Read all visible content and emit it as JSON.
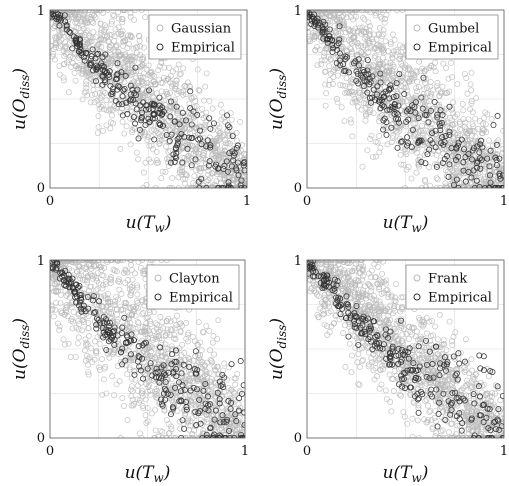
{
  "chart_data": [
    {
      "type": "scatter",
      "legend_position": "top-right",
      "grid": true,
      "xlim": [
        0,
        1
      ],
      "ylim": [
        0,
        1
      ],
      "xticks": [
        "0",
        "1"
      ],
      "yticks": [
        "0",
        "1"
      ],
      "xlabel": {
        "base": "u(T",
        "sub": "w",
        "close": ")"
      },
      "ylabel": {
        "base": "u(O",
        "sub": "diss",
        "close": ")"
      },
      "series": [
        {
          "name": "Gaussian",
          "color": "#b8b8b8",
          "style": "cloud",
          "n": 1400,
          "spread": 0.18
        },
        {
          "name": "Empirical",
          "color": "#333333",
          "style": "empirical",
          "n": 260,
          "x": [
            0.02,
            0.05,
            0.1,
            0.15,
            0.2,
            0.3,
            0.4,
            0.5,
            0.6,
            0.7,
            0.8,
            0.9,
            0.98
          ],
          "y": [
            0.97,
            0.93,
            0.87,
            0.8,
            0.73,
            0.6,
            0.5,
            0.42,
            0.34,
            0.27,
            0.2,
            0.13,
            0.05
          ]
        }
      ]
    },
    {
      "type": "scatter",
      "legend_position": "top-right",
      "grid": true,
      "xlim": [
        0,
        1
      ],
      "ylim": [
        0,
        1
      ],
      "xticks": [
        "0",
        "1"
      ],
      "yticks": [
        "0",
        "1"
      ],
      "xlabel": {
        "base": "u(T",
        "sub": "w",
        "close": ")"
      },
      "ylabel": {
        "base": "u(O",
        "sub": "diss",
        "close": ")"
      },
      "series": [
        {
          "name": "Gumbel",
          "color": "#b8b8b8",
          "style": "cloud",
          "n": 1400,
          "spread": 0.19
        },
        {
          "name": "Empirical",
          "color": "#333333",
          "style": "empirical",
          "n": 260,
          "x": [
            0.02,
            0.05,
            0.1,
            0.15,
            0.2,
            0.3,
            0.4,
            0.5,
            0.6,
            0.7,
            0.8,
            0.9,
            0.98
          ],
          "y": [
            0.97,
            0.93,
            0.87,
            0.8,
            0.73,
            0.6,
            0.5,
            0.42,
            0.34,
            0.27,
            0.2,
            0.13,
            0.05
          ]
        }
      ]
    },
    {
      "type": "scatter",
      "legend_position": "top-right",
      "grid": true,
      "xlim": [
        0,
        1
      ],
      "ylim": [
        0,
        1
      ],
      "xticks": [
        "0",
        "1"
      ],
      "yticks": [
        "0",
        "1"
      ],
      "xlabel": {
        "base": "u(T",
        "sub": "w",
        "close": ")"
      },
      "ylabel": {
        "base": "u(O",
        "sub": "diss",
        "close": ")"
      },
      "series": [
        {
          "name": "Clayton",
          "color": "#b8b8b8",
          "style": "cloud",
          "n": 1400,
          "spread": 0.21
        },
        {
          "name": "Empirical",
          "color": "#333333",
          "style": "empirical",
          "n": 260,
          "x": [
            0.02,
            0.05,
            0.1,
            0.15,
            0.2,
            0.3,
            0.4,
            0.5,
            0.6,
            0.7,
            0.8,
            0.9,
            0.98
          ],
          "y": [
            0.97,
            0.93,
            0.87,
            0.8,
            0.73,
            0.6,
            0.5,
            0.42,
            0.34,
            0.27,
            0.2,
            0.13,
            0.05
          ]
        }
      ]
    },
    {
      "type": "scatter",
      "legend_position": "top-right",
      "grid": true,
      "xlim": [
        0,
        1
      ],
      "ylim": [
        0,
        1
      ],
      "xticks": [
        "0",
        "1"
      ],
      "yticks": [
        "0",
        "1"
      ],
      "xlabel": {
        "base": "u(T",
        "sub": "w",
        "close": ")"
      },
      "ylabel": {
        "base": "u(O",
        "sub": "diss",
        "close": ")"
      },
      "series": [
        {
          "name": "Frank",
          "color": "#b8b8b8",
          "style": "cloud",
          "n": 1400,
          "spread": 0.16
        },
        {
          "name": "Empirical",
          "color": "#333333",
          "style": "empirical",
          "n": 260,
          "x": [
            0.02,
            0.05,
            0.1,
            0.15,
            0.2,
            0.3,
            0.4,
            0.5,
            0.6,
            0.7,
            0.8,
            0.9,
            0.98
          ],
          "y": [
            0.97,
            0.93,
            0.87,
            0.8,
            0.73,
            0.6,
            0.5,
            0.42,
            0.34,
            0.27,
            0.2,
            0.13,
            0.05
          ]
        }
      ]
    }
  ]
}
